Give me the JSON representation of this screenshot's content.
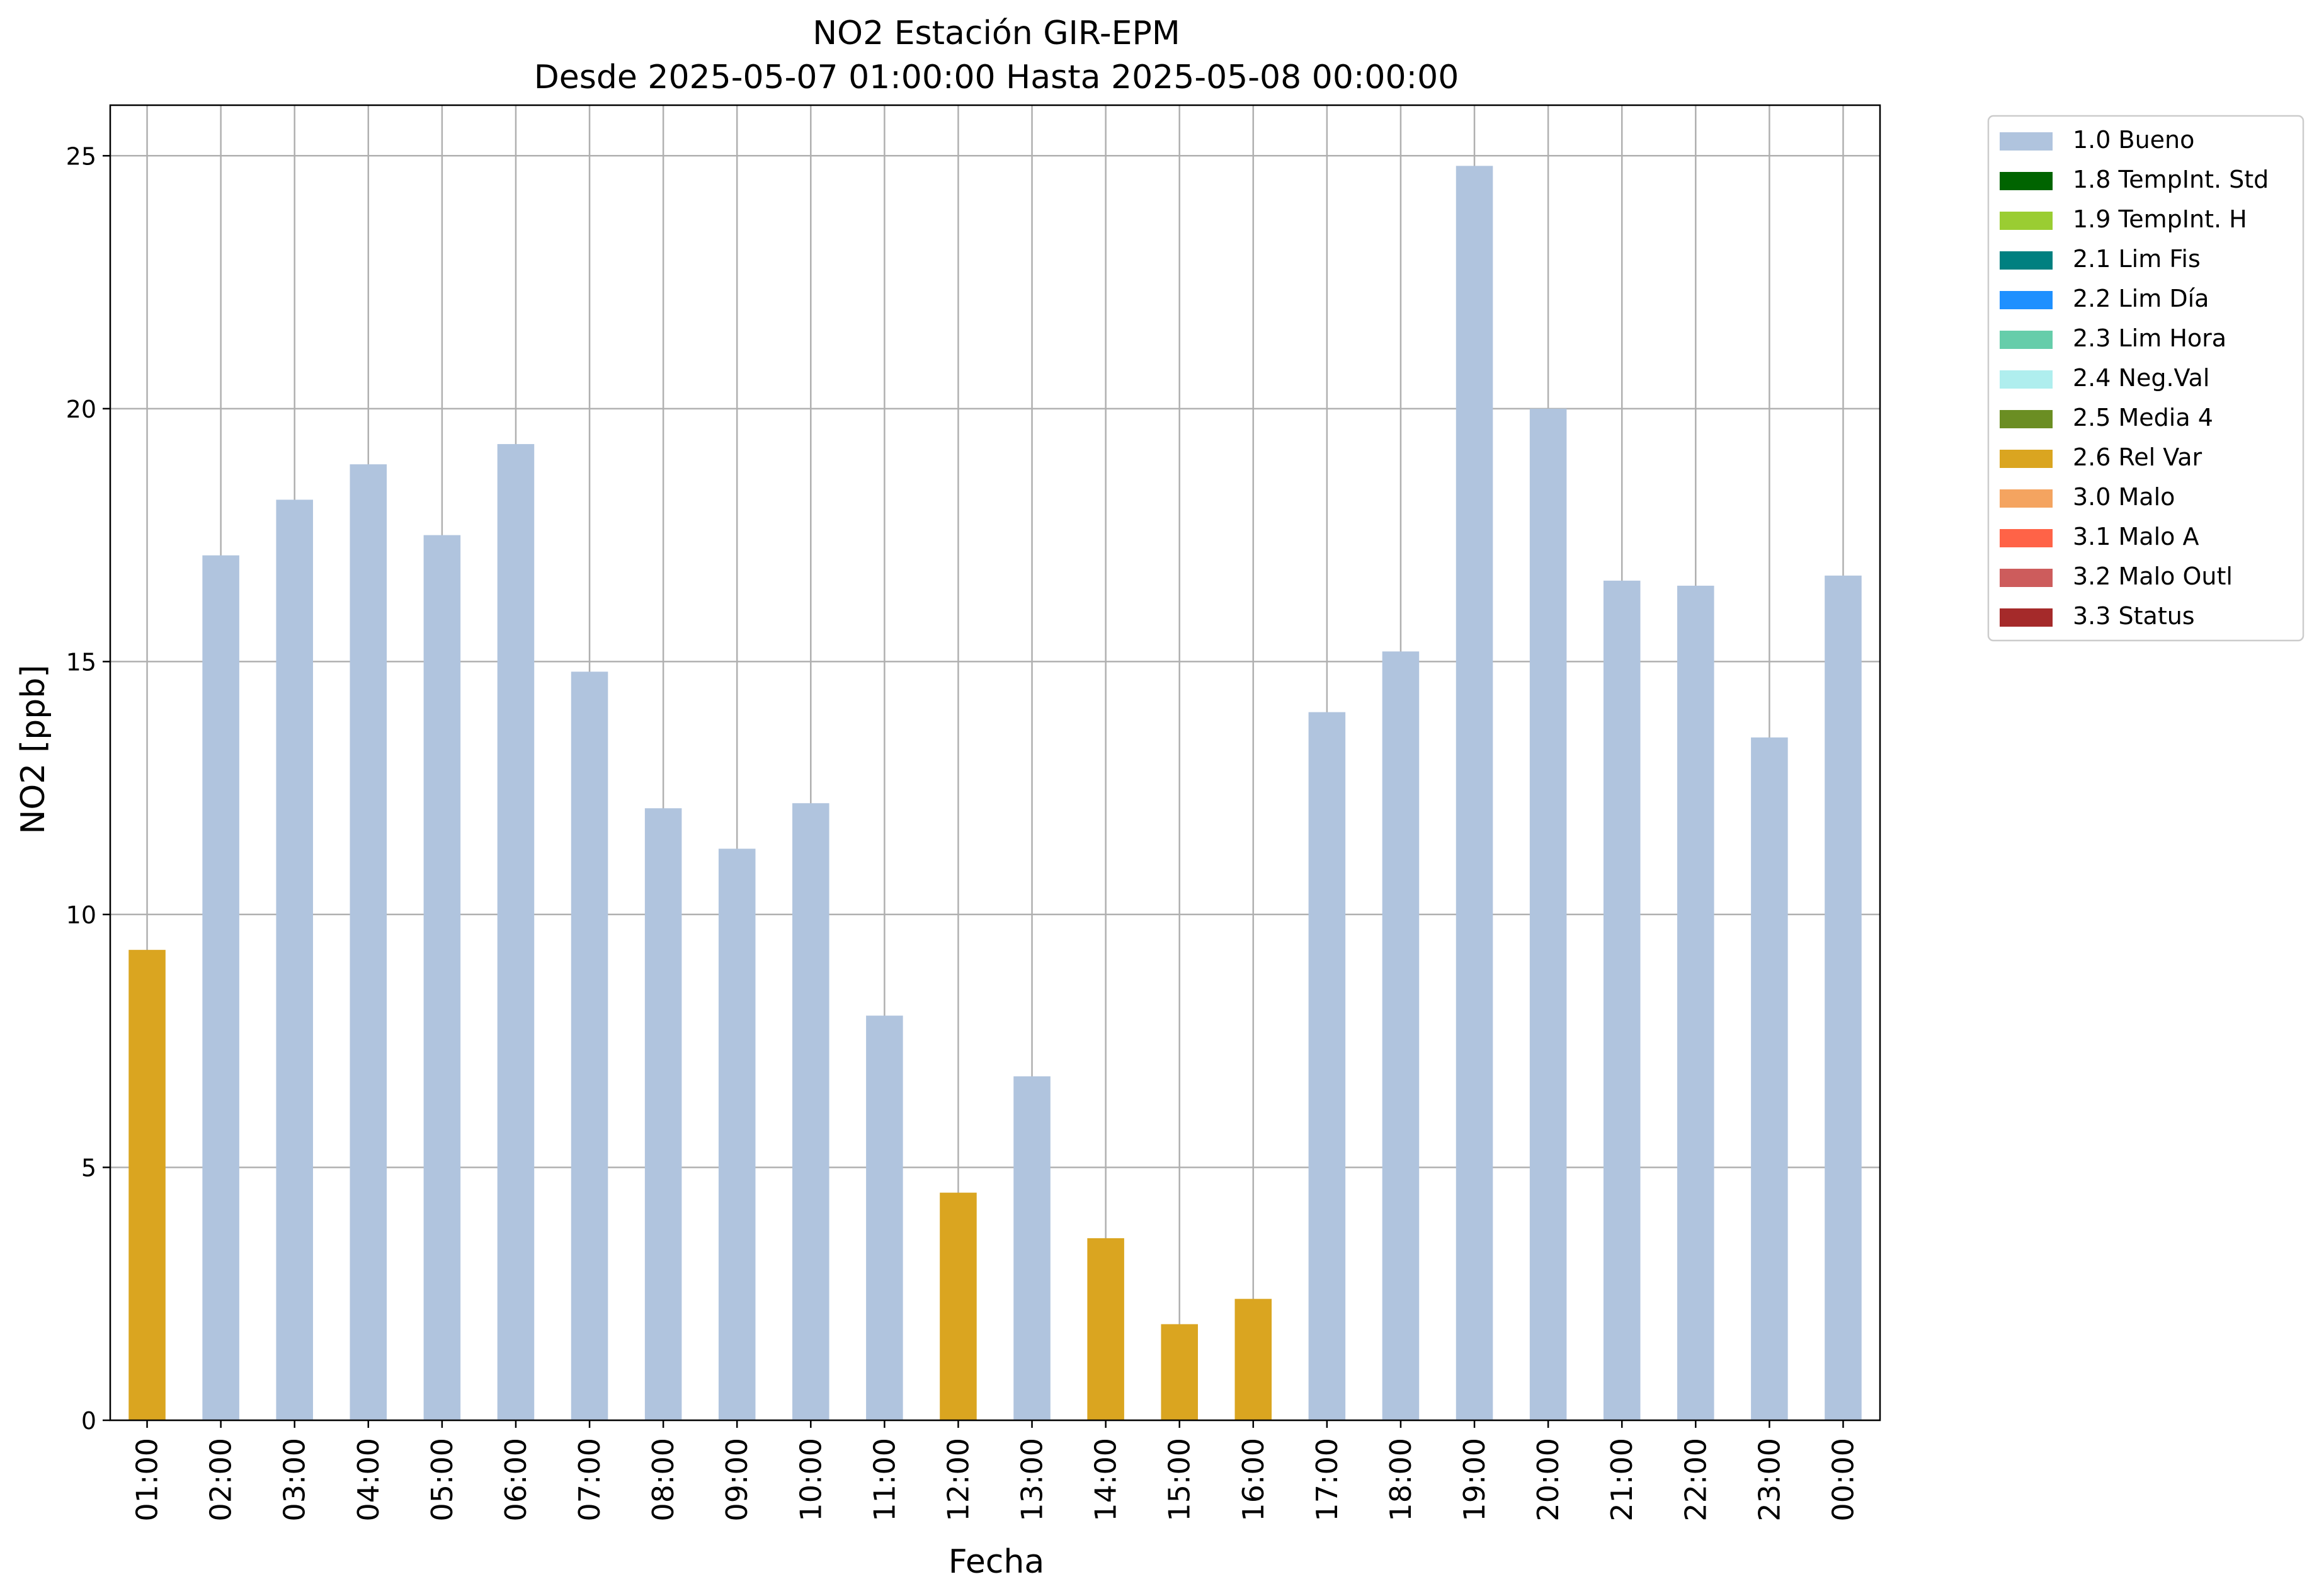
{
  "chart_data": {
    "type": "bar",
    "title": "NO2 Estación GIR-EPM",
    "subtitle": "Desde 2025-05-07 01:00:00 Hasta 2025-05-08 00:00:00",
    "xlabel": "Fecha",
    "ylabel": "NO2 [ppb]",
    "ylim": [
      0,
      26
    ],
    "yticks": [
      0,
      5,
      10,
      15,
      20,
      25
    ],
    "grid": true,
    "legend_position": "outside-top-right",
    "categories": [
      "01:00",
      "02:00",
      "03:00",
      "04:00",
      "05:00",
      "06:00",
      "07:00",
      "08:00",
      "09:00",
      "10:00",
      "11:00",
      "12:00",
      "13:00",
      "14:00",
      "15:00",
      "16:00",
      "17:00",
      "18:00",
      "19:00",
      "20:00",
      "21:00",
      "22:00",
      "23:00",
      "00:00"
    ],
    "values": [
      9.3,
      17.1,
      18.2,
      18.9,
      17.5,
      19.3,
      14.8,
      12.1,
      11.3,
      12.2,
      8.0,
      4.5,
      6.8,
      3.6,
      1.9,
      2.4,
      14.0,
      15.2,
      24.8,
      20.0,
      16.6,
      16.5,
      13.5,
      16.7
    ],
    "flags": [
      "2.6 Rel Var",
      "1.0 Bueno",
      "1.0 Bueno",
      "1.0 Bueno",
      "1.0 Bueno",
      "1.0 Bueno",
      "1.0 Bueno",
      "1.0 Bueno",
      "1.0 Bueno",
      "1.0 Bueno",
      "1.0 Bueno",
      "2.6 Rel Var",
      "1.0 Bueno",
      "2.6 Rel Var",
      "2.6 Rel Var",
      "2.6 Rel Var",
      "1.0 Bueno",
      "1.0 Bueno",
      "1.0 Bueno",
      "1.0 Bueno",
      "1.0 Bueno",
      "1.0 Bueno",
      "1.0 Bueno",
      "1.0 Bueno"
    ],
    "legend": [
      {
        "label": "1.0 Bueno",
        "color": "#b0c4de"
      },
      {
        "label": "1.8 TempInt. Std",
        "color": "#006400"
      },
      {
        "label": "1.9 TempInt. H",
        "color": "#9acd32"
      },
      {
        "label": "2.1 Lim Fis",
        "color": "#008080"
      },
      {
        "label": "2.2 Lim Día",
        "color": "#1e90ff"
      },
      {
        "label": "2.3 Lim Hora",
        "color": "#66cdaa"
      },
      {
        "label": "2.4 Neg.Val",
        "color": "#afeeee"
      },
      {
        "label": "2.5 Media 4",
        "color": "#6b8e23"
      },
      {
        "label": "2.6 Rel Var",
        "color": "#daa520"
      },
      {
        "label": "3.0 Malo",
        "color": "#f4a460"
      },
      {
        "label": "3.1 Malo A",
        "color": "#ff6347"
      },
      {
        "label": "3.2 Malo Outl",
        "color": "#cd5c5c"
      },
      {
        "label": "3.3 Status",
        "color": "#a52a2a"
      }
    ]
  }
}
